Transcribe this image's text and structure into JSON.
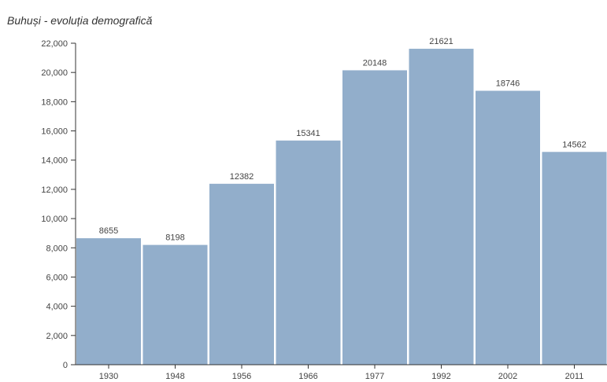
{
  "chart_data": {
    "type": "bar",
    "title": "Buhuși - evoluția demografică",
    "xlabel": "",
    "ylabel": "",
    "categories": [
      "1930",
      "1948",
      "1956",
      "1966",
      "1977",
      "1992",
      "2002",
      "2011"
    ],
    "values": [
      8655,
      8198,
      12382,
      15341,
      20148,
      21621,
      18746,
      14562
    ],
    "data_labels": [
      "8655",
      "8198",
      "12382",
      "15341",
      "20148",
      "21621",
      "18746",
      "14562"
    ],
    "ylim": [
      0,
      22000
    ],
    "y_ticks": [
      0,
      2000,
      4000,
      6000,
      8000,
      10000,
      12000,
      14000,
      16000,
      18000,
      20000,
      22000
    ],
    "y_tick_labels": [
      "0",
      "2,000",
      "4,000",
      "6,000",
      "8,000",
      "10,000",
      "12,000",
      "14,000",
      "16,000",
      "18,000",
      "20,000",
      "22,000"
    ],
    "grid": false,
    "legend": "none",
    "bar_color": "#92aecb",
    "axis_color": "#333333"
  }
}
